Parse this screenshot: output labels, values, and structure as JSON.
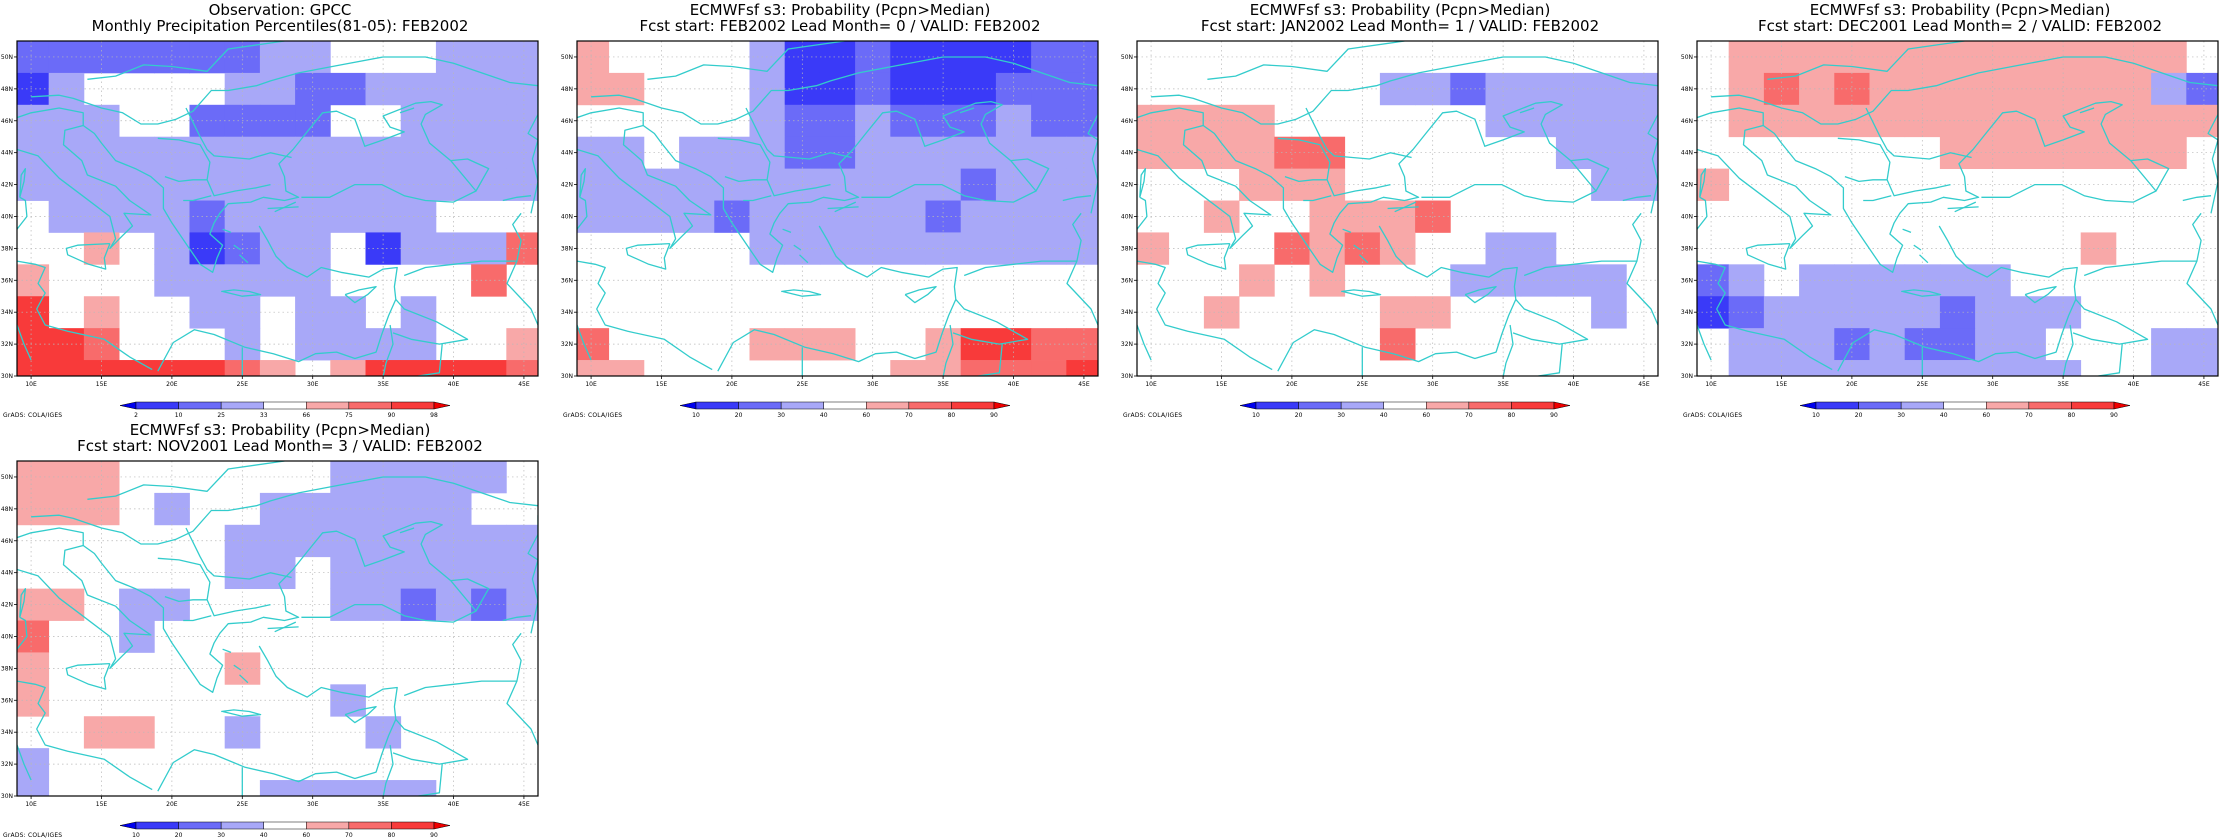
{
  "credit": "GrADS: COLA/IGES",
  "x_ticks": [
    "10E",
    "15E",
    "20E",
    "25E",
    "30E",
    "35E",
    "40E",
    "45E"
  ],
  "y_ticks": [
    "30N",
    "32N",
    "34N",
    "36N",
    "38N",
    "40N",
    "42N",
    "44N",
    "46N",
    "48N",
    "50N"
  ],
  "colorbars": {
    "percentile": {
      "labels": [
        "2",
        "10",
        "25",
        "33",
        "66",
        "75",
        "90",
        "98"
      ]
    },
    "probability": {
      "labels": [
        "10",
        "20",
        "30",
        "40",
        "60",
        "70",
        "80",
        "90"
      ]
    }
  },
  "colors": {
    "map_lines": "#33cccc",
    "percentile_scale": [
      "#0000f0",
      "#3a3af8",
      "#6b6bf8",
      "#a8a8f8",
      "#ffffff",
      "#f8a8a8",
      "#f86b6b",
      "#f83a3a",
      "#f00000"
    ],
    "probability_scale": [
      "#0000f0",
      "#3a3af8",
      "#6b6bf8",
      "#a8a8f8",
      "#ffffff",
      "#f8a8a8",
      "#f86b6b",
      "#f83a3a",
      "#f00000"
    ]
  },
  "chart_data": [
    {
      "type": "heatmap",
      "title": "Observation: GPCC",
      "subtitle": "Monthly Precipitation Percentiles(81-05): FEB2002",
      "scale": "percentile",
      "xlim": [
        9,
        46
      ],
      "ylim": [
        30,
        51
      ],
      "grid": [
        [
          -2,
          -2,
          -2,
          -2,
          -2,
          -2,
          -2,
          -1,
          -1,
          0,
          0,
          0,
          -1,
          -1,
          -1,
          -1
        ],
        [
          -3,
          -1,
          0,
          0,
          0,
          0,
          -1,
          -1,
          -2,
          -2,
          -1,
          -1,
          -1,
          -1,
          -1,
          -1
        ],
        [
          -1,
          -1,
          -1,
          0,
          0,
          -2,
          -2,
          -2,
          -2,
          0,
          0,
          -1,
          -1,
          -1,
          -1,
          -1
        ],
        [
          -1,
          -1,
          -1,
          -1,
          -1,
          -1,
          -1,
          -1,
          -1,
          -1,
          -1,
          -1,
          -1,
          -1,
          -1,
          -1
        ],
        [
          -1,
          -1,
          -1,
          -1,
          -1,
          -1,
          -1,
          -1,
          -1,
          -1,
          -1,
          -1,
          -1,
          -1,
          -1,
          -1
        ],
        [
          0,
          -1,
          -1,
          -1,
          -1,
          -2,
          -1,
          -1,
          -1,
          -1,
          -1,
          -1,
          0,
          0,
          0,
          -3
        ],
        [
          0,
          0,
          1,
          0,
          -1,
          -3,
          -2,
          -1,
          -1,
          0,
          -3,
          -1,
          -1,
          -1,
          2,
          0
        ],
        [
          1,
          0,
          0,
          0,
          -1,
          -1,
          -1,
          -1,
          -1,
          0,
          0,
          0,
          0,
          2,
          0,
          0
        ],
        [
          3,
          0,
          1,
          0,
          0,
          -1,
          -1,
          0,
          -1,
          -1,
          0,
          -1,
          0,
          0,
          0,
          2
        ],
        [
          3,
          3,
          2,
          0,
          0,
          0,
          -1,
          0,
          -1,
          -1,
          -1,
          -1,
          0,
          0,
          1,
          2
        ],
        [
          3,
          3,
          3,
          3,
          3,
          3,
          2,
          1,
          0,
          1,
          3,
          3,
          3,
          3,
          2,
          0
        ]
      ]
    },
    {
      "type": "heatmap",
      "title": "ECMWFsf s3: Probability (Pcpn>Median)",
      "subtitle": "Fcst start: FEB2002  Lead Month= 0 / VALID: FEB2002",
      "scale": "probability",
      "xlim": [
        9,
        46
      ],
      "ylim": [
        30,
        51
      ],
      "grid": [
        [
          1,
          0,
          0,
          0,
          0,
          -1,
          -3,
          -3,
          -2,
          -3,
          -3,
          -3,
          -3,
          -2,
          -2,
          -2
        ],
        [
          1,
          1,
          0,
          0,
          0,
          -1,
          -3,
          -3,
          -2,
          -3,
          -3,
          -3,
          -2,
          -2,
          -2,
          -1
        ],
        [
          0,
          0,
          0,
          0,
          0,
          -1,
          -2,
          -2,
          -1,
          -2,
          -2,
          -2,
          -1,
          -2,
          -2,
          -1
        ],
        [
          -1,
          -1,
          0,
          -1,
          -1,
          -1,
          -2,
          -2,
          -1,
          -1,
          -1,
          -1,
          -1,
          -1,
          -1,
          -1
        ],
        [
          -1,
          -1,
          -1,
          -1,
          -1,
          -1,
          -1,
          -1,
          -1,
          -1,
          -1,
          -2,
          -1,
          -1,
          -1,
          -1
        ],
        [
          -1,
          -1,
          -1,
          -1,
          -2,
          -1,
          -1,
          -1,
          -1,
          -1,
          -2,
          -1,
          -1,
          -1,
          -1,
          -1
        ],
        [
          0,
          0,
          0,
          0,
          0,
          -1,
          -1,
          -1,
          -1,
          -1,
          -1,
          -1,
          -1,
          -1,
          -1,
          -1
        ],
        [
          0,
          0,
          0,
          0,
          0,
          0,
          0,
          0,
          0,
          0,
          0,
          0,
          0,
          0,
          0,
          0
        ],
        [
          0,
          0,
          0,
          0,
          0,
          0,
          0,
          0,
          0,
          0,
          0,
          0,
          0,
          0,
          0,
          0
        ],
        [
          2,
          0,
          0,
          0,
          0,
          1,
          1,
          1,
          0,
          0,
          1,
          3,
          3,
          2,
          2,
          2
        ],
        [
          1,
          1,
          0,
          0,
          0,
          0,
          0,
          0,
          0,
          1,
          1,
          2,
          2,
          2,
          3,
          3
        ]
      ]
    },
    {
      "type": "heatmap",
      "title": "ECMWFsf s3: Probability (Pcpn>Median)",
      "subtitle": "Fcst start: JAN2002  Lead Month= 1 / VALID: FEB2002",
      "scale": "probability",
      "xlim": [
        9,
        46
      ],
      "ylim": [
        30,
        51
      ],
      "grid": [
        [
          0,
          0,
          0,
          0,
          0,
          0,
          0,
          0,
          0,
          0,
          0,
          0,
          0,
          0,
          0,
          -1
        ],
        [
          0,
          0,
          0,
          0,
          0,
          0,
          0,
          -1,
          -1,
          -2,
          -1,
          -1,
          -1,
          -1,
          -1,
          -1
        ],
        [
          1,
          1,
          1,
          1,
          0,
          0,
          0,
          0,
          0,
          0,
          -1,
          -1,
          -1,
          -1,
          -1,
          -1
        ],
        [
          1,
          1,
          1,
          1,
          2,
          2,
          0,
          0,
          0,
          0,
          0,
          0,
          -1,
          -1,
          -1,
          -1
        ],
        [
          0,
          0,
          0,
          1,
          1,
          1,
          0,
          0,
          0,
          0,
          0,
          0,
          0,
          -1,
          -1,
          -1
        ],
        [
          0,
          0,
          1,
          0,
          0,
          1,
          1,
          1,
          2,
          0,
          0,
          0,
          0,
          0,
          0,
          -1
        ],
        [
          1,
          0,
          0,
          0,
          2,
          1,
          2,
          1,
          0,
          0,
          -1,
          -1,
          0,
          0,
          0,
          0
        ],
        [
          0,
          0,
          0,
          1,
          0,
          1,
          0,
          0,
          0,
          -1,
          -1,
          -1,
          -1,
          -1,
          0,
          0
        ],
        [
          0,
          0,
          1,
          0,
          0,
          0,
          0,
          1,
          1,
          0,
          0,
          0,
          0,
          -1,
          0,
          0
        ],
        [
          0,
          0,
          0,
          0,
          0,
          0,
          0,
          2,
          0,
          0,
          0,
          0,
          0,
          0,
          0,
          0
        ],
        [
          0,
          0,
          0,
          0,
          0,
          0,
          0,
          0,
          0,
          0,
          0,
          0,
          0,
          0,
          0,
          2
        ]
      ]
    },
    {
      "type": "heatmap",
      "title": "ECMWFsf s3: Probability (Pcpn>Median)",
      "subtitle": "Fcst start: DEC2001  Lead Month= 2 / VALID: FEB2002",
      "scale": "probability",
      "xlim": [
        9,
        46
      ],
      "ylim": [
        30,
        51
      ],
      "grid": [
        [
          0,
          1,
          1,
          1,
          1,
          1,
          1,
          1,
          1,
          1,
          1,
          1,
          1,
          1,
          0,
          -3
        ],
        [
          0,
          1,
          2,
          1,
          2,
          1,
          1,
          1,
          1,
          1,
          1,
          1,
          1,
          -1,
          -2,
          -1
        ],
        [
          0,
          1,
          1,
          1,
          1,
          1,
          1,
          1,
          1,
          1,
          1,
          1,
          1,
          1,
          1,
          0
        ],
        [
          0,
          0,
          0,
          0,
          0,
          0,
          0,
          1,
          1,
          1,
          1,
          1,
          1,
          1,
          0,
          -1
        ],
        [
          1,
          0,
          0,
          0,
          0,
          0,
          0,
          0,
          0,
          0,
          0,
          0,
          0,
          0,
          0,
          0
        ],
        [
          0,
          0,
          0,
          0,
          0,
          0,
          0,
          0,
          0,
          0,
          0,
          0,
          0,
          0,
          0,
          0
        ],
        [
          0,
          0,
          0,
          0,
          0,
          0,
          0,
          0,
          0,
          0,
          0,
          1,
          0,
          0,
          0,
          0
        ],
        [
          -2,
          -1,
          0,
          -1,
          -1,
          -1,
          -1,
          -1,
          -1,
          0,
          0,
          0,
          0,
          0,
          0,
          0
        ],
        [
          -3,
          -2,
          -1,
          -1,
          -1,
          -1,
          -1,
          -2,
          -1,
          -1,
          -1,
          0,
          0,
          0,
          0,
          0
        ],
        [
          0,
          -1,
          -1,
          -1,
          -2,
          -1,
          -2,
          -2,
          -1,
          -1,
          0,
          0,
          0,
          -1,
          -1,
          -1
        ],
        [
          0,
          -1,
          -1,
          -1,
          -1,
          -1,
          -1,
          -1,
          -1,
          -1,
          -1,
          0,
          0,
          -1,
          -1,
          -1
        ]
      ]
    },
    {
      "type": "heatmap",
      "title": "ECMWFsf s3: Probability (Pcpn>Median)",
      "subtitle": "Fcst start: NOV2001  Lead Month= 3 / VALID: FEB2002",
      "scale": "probability",
      "xlim": [
        9,
        46
      ],
      "ylim": [
        30,
        51
      ],
      "grid": [
        [
          1,
          1,
          1,
          0,
          0,
          0,
          0,
          0,
          0,
          -1,
          -1,
          -1,
          -1,
          -1,
          0,
          0
        ],
        [
          1,
          1,
          1,
          0,
          -1,
          0,
          0,
          -1,
          -1,
          -1,
          -1,
          -1,
          -1,
          0,
          0,
          0
        ],
        [
          0,
          0,
          0,
          0,
          0,
          0,
          -1,
          -1,
          -1,
          -1,
          -1,
          -1,
          -1,
          -1,
          -1,
          0
        ],
        [
          0,
          0,
          0,
          0,
          0,
          0,
          -1,
          -1,
          0,
          -1,
          -1,
          -1,
          -1,
          -1,
          -1,
          -1
        ],
        [
          1,
          1,
          0,
          -1,
          -1,
          0,
          0,
          0,
          0,
          -1,
          -1,
          -2,
          -1,
          -2,
          -1,
          -1
        ],
        [
          2,
          0,
          0,
          -1,
          0,
          0,
          0,
          0,
          0,
          0,
          0,
          0,
          0,
          0,
          0,
          0
        ],
        [
          1,
          0,
          0,
          0,
          0,
          0,
          1,
          0,
          0,
          0,
          0,
          0,
          0,
          0,
          0,
          0
        ],
        [
          1,
          0,
          0,
          0,
          0,
          0,
          0,
          0,
          0,
          -1,
          0,
          0,
          0,
          0,
          0,
          0
        ],
        [
          0,
          0,
          1,
          1,
          0,
          0,
          -1,
          0,
          0,
          0,
          -1,
          0,
          0,
          0,
          0,
          0
        ],
        [
          -1,
          0,
          0,
          0,
          0,
          0,
          0,
          0,
          0,
          0,
          0,
          0,
          0,
          0,
          0,
          0
        ],
        [
          -1,
          0,
          0,
          0,
          0,
          0,
          0,
          -1,
          -1,
          -1,
          -1,
          -1,
          0,
          0,
          0,
          0
        ]
      ]
    }
  ]
}
